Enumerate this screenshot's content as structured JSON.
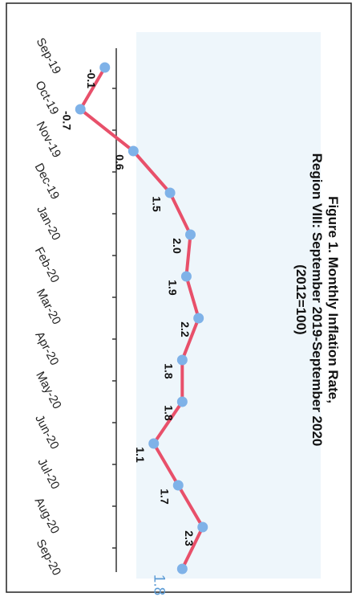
{
  "title_lines": [
    "Figure 1. Monthly Inflation Rate,",
    "Region VIII: September 2019-September 2020",
    "(2012=100)"
  ],
  "colors": {
    "line": "#e8506a",
    "marker": "#7fb2e8",
    "highlight_label": "#5b9bd5",
    "page_background": "#ffffff",
    "panel_background": "#eef6fb"
  },
  "chart_data": {
    "type": "line",
    "orientation": "rotated-90-clockwise",
    "title": "Figure 1. Monthly Inflation Rate, Region VIII: September 2019-September 2020 (2012=100)",
    "categories": [
      "Sep-19",
      "Oct-19",
      "Nov-19",
      "Dec-19",
      "Jan-20",
      "Feb-20",
      "Mar-20",
      "Apr-20",
      "May-20",
      "Jun-20",
      "Jul-20",
      "Aug-20",
      "Sep-20"
    ],
    "series": [
      {
        "values": [
          -0.1,
          -0.7,
          0.6,
          1.5,
          2.0,
          1.9,
          2.2,
          1.8,
          1.8,
          1.1,
          1.7,
          2.3,
          1.8
        ],
        "labels": [
          "-0.1",
          "-0.7",
          "0.6",
          "1.5",
          "2.0",
          "1.9",
          "2.2",
          "1.8",
          "1.8",
          "1.1",
          "1.7",
          "2.3",
          "1.8"
        ]
      }
    ],
    "highlight_index": 12,
    "ylim": [
      -1.0,
      2.6
    ],
    "grid": false,
    "legend": "none"
  }
}
